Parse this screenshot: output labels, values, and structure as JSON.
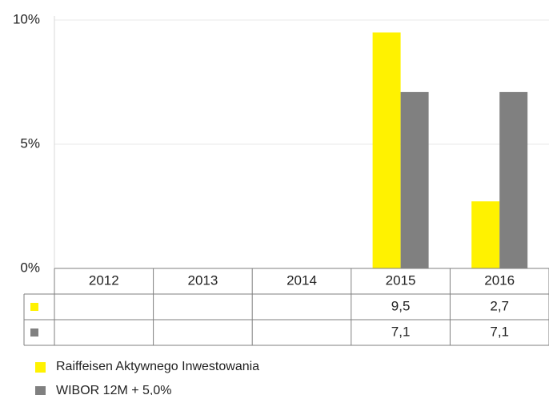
{
  "chart_data": {
    "type": "bar",
    "categories": [
      "2012",
      "2013",
      "2014",
      "2015",
      "2016"
    ],
    "series": [
      {
        "name": "Raiffeisen Aktywnego Inwestowania",
        "color": "#fff200",
        "values": [
          null,
          null,
          null,
          9.5,
          2.7
        ],
        "value_labels": [
          null,
          null,
          null,
          "9,5",
          "2,7"
        ]
      },
      {
        "name": "WIBOR 12M + 5,0%",
        "color": "#808080",
        "values": [
          null,
          null,
          null,
          7.1,
          7.1
        ],
        "value_labels": [
          null,
          null,
          null,
          "7,1",
          "7,1"
        ]
      }
    ],
    "ylim": [
      0,
      10
    ],
    "yticks": [
      {
        "value": 0,
        "label": "0%"
      },
      {
        "value": 5,
        "label": "5%"
      },
      {
        "value": 10,
        "label": "10%"
      }
    ],
    "grid": true
  }
}
